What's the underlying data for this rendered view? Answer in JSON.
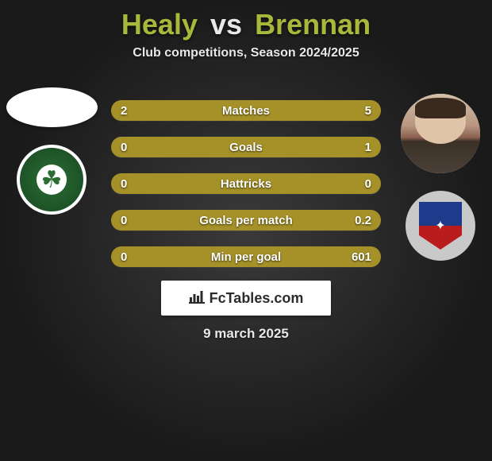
{
  "title": {
    "player1": "Healy",
    "vs": "vs",
    "player2": "Brennan"
  },
  "subtitle": "Club competitions, Season 2024/2025",
  "colors": {
    "player1_accent": "#a8b83a",
    "player2_accent": "#a8b83a",
    "bar_p1": "#a59128",
    "bar_p2": "#a59128",
    "bar_track": "#5a5a5a",
    "background_inner": "#3a3a3a",
    "background_outer": "#1a1a1a",
    "text": "#ffffff"
  },
  "stats": [
    {
      "label": "Matches",
      "p1": "2",
      "p2": "5",
      "p1_pct": 28,
      "p2_pct": 72
    },
    {
      "label": "Goals",
      "p1": "0",
      "p2": "1",
      "p1_pct": 8,
      "p2_pct": 92
    },
    {
      "label": "Hattricks",
      "p1": "0",
      "p2": "0",
      "p1_pct": 50,
      "p2_pct": 50
    },
    {
      "label": "Goals per match",
      "p1": "0",
      "p2": "0.2",
      "p1_pct": 8,
      "p2_pct": 92
    },
    {
      "label": "Min per goal",
      "p1": "0",
      "p2": "601",
      "p1_pct": 8,
      "p2_pct": 92
    }
  ],
  "branding": "FcTables.com",
  "date": "9 march 2025",
  "badges": {
    "left_club": "Shamrock Rovers badge",
    "right_club": "Drogheda United badge"
  },
  "avatars": {
    "left": "player silhouette placeholder",
    "right": "player photo"
  }
}
